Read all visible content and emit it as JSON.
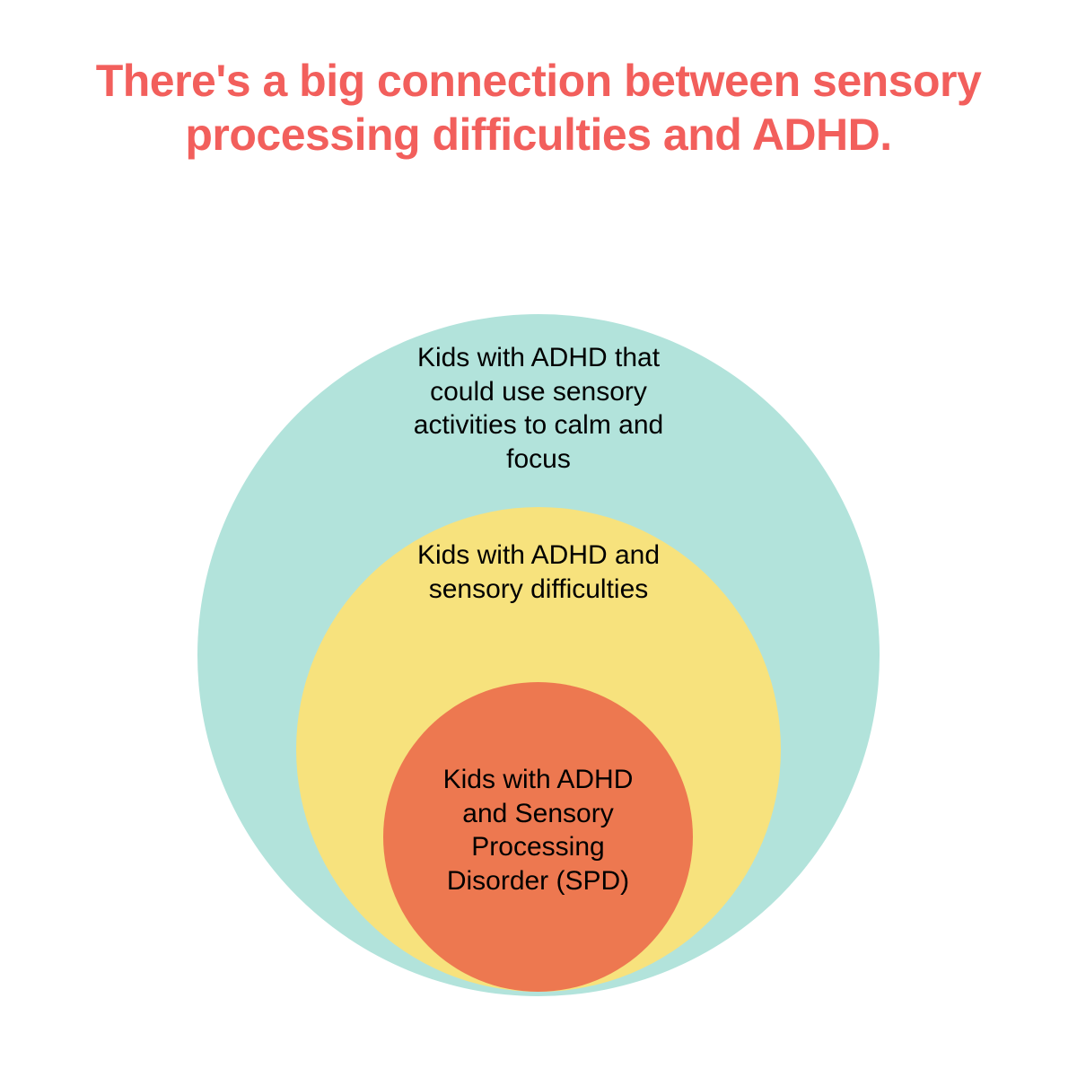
{
  "title": {
    "text": "There's a big connection between sensory processing difficulties and ADHD.",
    "color": "#f25f5c",
    "fontsize": 50
  },
  "diagram": {
    "type": "nested-circles",
    "background_color": "#ffffff",
    "circles": [
      {
        "id": "outer",
        "label": "Kids with ADHD that could use sensory activities to calm and focus",
        "color": "#b2e3db",
        "diameter": 760,
        "label_fontsize": 30
      },
      {
        "id": "middle",
        "label": "Kids with ADHD and sensory difficulties",
        "color": "#f7e27d",
        "diameter": 540,
        "label_fontsize": 30
      },
      {
        "id": "inner",
        "label": "Kids with ADHD and Sensory Processing Disorder (SPD)",
        "color": "#ed7850",
        "diameter": 345,
        "label_fontsize": 30
      }
    ]
  }
}
